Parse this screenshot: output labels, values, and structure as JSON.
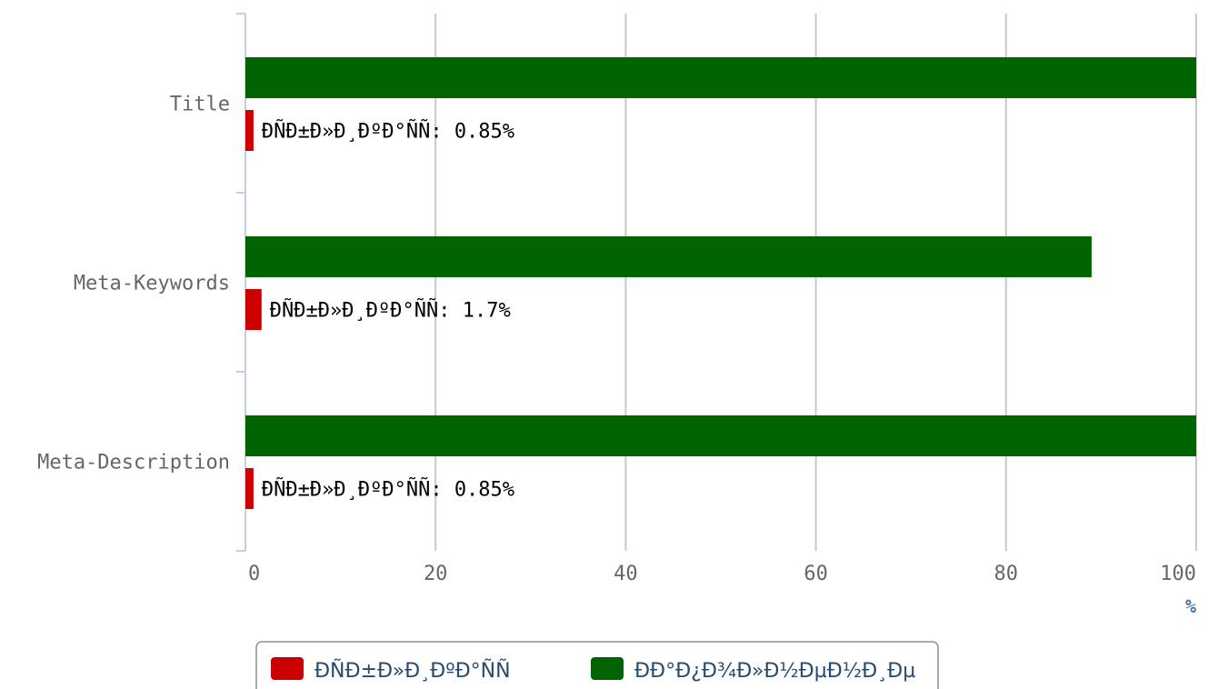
{
  "chart_data": {
    "type": "bar",
    "orientation": "horizontal",
    "categories": [
      "Title",
      "Meta-Keywords",
      "Meta-Description"
    ],
    "series": [
      {
        "name": "ÐÑÐ±Ð»Ð¸ÐºÐ°ÑÑ",
        "color": "#cc0000",
        "values": [
          0.85,
          1.7,
          0.85
        ],
        "data_labels": [
          "ÐÑÐ±Ð»Ð¸ÐºÐ°ÑÑ: 0.85%",
          "ÐÑÐ±Ð»Ð¸ÐºÐ°ÑÑ: 1.7%",
          "ÐÑÐ±Ð»Ð¸ÐºÐ°ÑÑ: 0.85%"
        ]
      },
      {
        "name": "ÐÐ°Ð¿Ð¾Ð»Ð½ÐµÐ½Ð¸Ðµ",
        "color": "#006400",
        "values": [
          100,
          89,
          100
        ]
      }
    ],
    "x_ticks": [
      "0",
      "20",
      "40",
      "60",
      "80",
      "100"
    ],
    "xlim": [
      0,
      100
    ],
    "unit_label": "%",
    "grid": true,
    "legend_position": "bottom-center"
  }
}
